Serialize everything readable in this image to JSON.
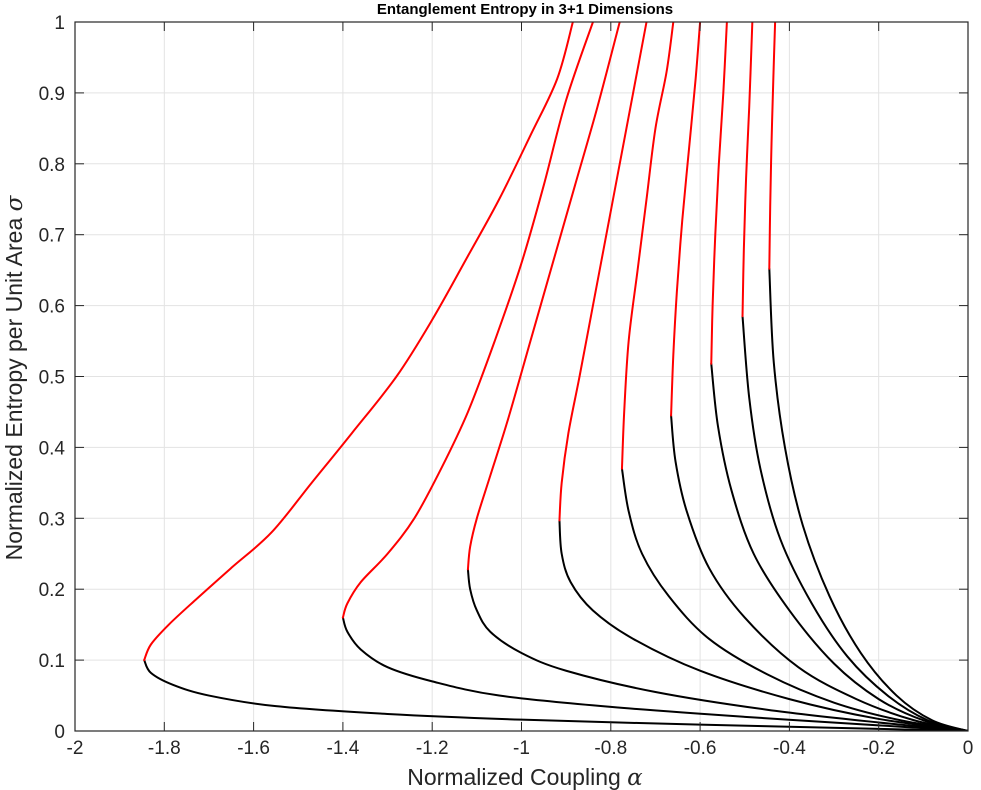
{
  "chart_data": {
    "type": "line",
    "title": "Entanglement Entropy in 3+1 Dimensions",
    "xlabel": "Normalized Coupling",
    "xlabel_symbol": "α",
    "ylabel": "Normalized Entropy per Unit Area",
    "ylabel_symbol": "σ",
    "xlim": [
      -2,
      0
    ],
    "ylim": [
      0,
      1
    ],
    "xticks": [
      "-2",
      "-1.8",
      "-1.6",
      "-1.4",
      "-1.2",
      "-1",
      "-0.8",
      "-0.6",
      "-0.4",
      "-0.2",
      "0"
    ],
    "yticks": [
      "0",
      "0.1",
      "0.2",
      "0.3",
      "0.4",
      "0.5",
      "0.6",
      "0.7",
      "0.8",
      "0.9",
      "1"
    ],
    "grid": true,
    "colors": {
      "lower_branch": "#000000",
      "upper_branch": "#ff0000",
      "grid": "#e3e3e3",
      "axis": "#262626"
    },
    "series": [
      {
        "lower": [
          [
            0,
            0
          ],
          [
            -0.2,
            0.003
          ],
          [
            -0.6,
            0.009
          ],
          [
            -1.0,
            0.016
          ],
          [
            -1.3,
            0.024
          ],
          [
            -1.55,
            0.035
          ],
          [
            -1.7,
            0.05
          ],
          [
            -1.78,
            0.065
          ],
          [
            -1.83,
            0.082
          ],
          [
            -1.845,
            0.1
          ]
        ],
        "upper": [
          [
            -1.845,
            0.1
          ],
          [
            -1.83,
            0.122
          ],
          [
            -1.79,
            0.15
          ],
          [
            -1.73,
            0.185
          ],
          [
            -1.65,
            0.23
          ],
          [
            -1.56,
            0.28
          ],
          [
            -1.47,
            0.35
          ],
          [
            -1.38,
            0.42
          ],
          [
            -1.28,
            0.5
          ],
          [
            -1.2,
            0.58
          ],
          [
            -1.12,
            0.67
          ],
          [
            -1.05,
            0.75
          ],
          [
            -0.98,
            0.84
          ],
          [
            -0.92,
            0.92
          ],
          [
            -0.885,
            1.0
          ]
        ]
      },
      {
        "lower": [
          [
            0,
            0
          ],
          [
            -0.2,
            0.008
          ],
          [
            -0.5,
            0.02
          ],
          [
            -0.8,
            0.034
          ],
          [
            -1.05,
            0.05
          ],
          [
            -1.2,
            0.07
          ],
          [
            -1.3,
            0.09
          ],
          [
            -1.36,
            0.115
          ],
          [
            -1.39,
            0.14
          ],
          [
            -1.4,
            0.16
          ]
        ],
        "upper": [
          [
            -1.4,
            0.16
          ],
          [
            -1.39,
            0.18
          ],
          [
            -1.36,
            0.21
          ],
          [
            -1.3,
            0.25
          ],
          [
            -1.24,
            0.3
          ],
          [
            -1.18,
            0.37
          ],
          [
            -1.12,
            0.45
          ],
          [
            -1.06,
            0.55
          ],
          [
            -1.0,
            0.66
          ],
          [
            -0.95,
            0.77
          ],
          [
            -0.9,
            0.89
          ],
          [
            -0.84,
            1.0
          ]
        ]
      },
      {
        "lower": [
          [
            0,
            0
          ],
          [
            -0.2,
            0.012
          ],
          [
            -0.45,
            0.03
          ],
          [
            -0.7,
            0.055
          ],
          [
            -0.9,
            0.085
          ],
          [
            -1.0,
            0.11
          ],
          [
            -1.07,
            0.14
          ],
          [
            -1.1,
            0.17
          ],
          [
            -1.115,
            0.2
          ],
          [
            -1.12,
            0.228
          ]
        ],
        "upper": [
          [
            -1.12,
            0.228
          ],
          [
            -1.115,
            0.26
          ],
          [
            -1.1,
            0.3
          ],
          [
            -1.07,
            0.36
          ],
          [
            -1.03,
            0.44
          ],
          [
            -0.98,
            0.55
          ],
          [
            -0.93,
            0.66
          ],
          [
            -0.88,
            0.77
          ],
          [
            -0.83,
            0.88
          ],
          [
            -0.78,
            1.0
          ]
        ]
      },
      {
        "lower": [
          [
            0,
            0
          ],
          [
            -0.2,
            0.017
          ],
          [
            -0.4,
            0.045
          ],
          [
            -0.6,
            0.085
          ],
          [
            -0.75,
            0.13
          ],
          [
            -0.84,
            0.17
          ],
          [
            -0.89,
            0.21
          ],
          [
            -0.91,
            0.25
          ],
          [
            -0.915,
            0.297
          ]
        ],
        "upper": [
          [
            -0.915,
            0.297
          ],
          [
            -0.91,
            0.35
          ],
          [
            -0.895,
            0.42
          ],
          [
            -0.87,
            0.5
          ],
          [
            -0.84,
            0.6
          ],
          [
            -0.81,
            0.7
          ],
          [
            -0.78,
            0.8
          ],
          [
            -0.75,
            0.9
          ],
          [
            -0.72,
            1.0
          ]
        ]
      },
      {
        "lower": [
          [
            0,
            0
          ],
          [
            -0.15,
            0.015
          ],
          [
            -0.3,
            0.04
          ],
          [
            -0.45,
            0.08
          ],
          [
            -0.58,
            0.13
          ],
          [
            -0.67,
            0.19
          ],
          [
            -0.73,
            0.25
          ],
          [
            -0.76,
            0.31
          ],
          [
            -0.775,
            0.37
          ]
        ],
        "upper": [
          [
            -0.775,
            0.37
          ],
          [
            -0.77,
            0.45
          ],
          [
            -0.76,
            0.55
          ],
          [
            -0.74,
            0.65
          ],
          [
            -0.72,
            0.75
          ],
          [
            -0.7,
            0.85
          ],
          [
            -0.675,
            0.93
          ],
          [
            -0.66,
            1.0
          ]
        ]
      },
      {
        "lower": [
          [
            0,
            0
          ],
          [
            -0.12,
            0.015
          ],
          [
            -0.25,
            0.045
          ],
          [
            -0.38,
            0.09
          ],
          [
            -0.5,
            0.16
          ],
          [
            -0.58,
            0.23
          ],
          [
            -0.63,
            0.31
          ],
          [
            -0.655,
            0.38
          ],
          [
            -0.665,
            0.445
          ]
        ],
        "upper": [
          [
            -0.665,
            0.445
          ],
          [
            -0.66,
            0.53
          ],
          [
            -0.652,
            0.62
          ],
          [
            -0.64,
            0.72
          ],
          [
            -0.625,
            0.82
          ],
          [
            -0.61,
            0.92
          ],
          [
            -0.6,
            1.0
          ]
        ]
      },
      {
        "lower": [
          [
            0,
            0
          ],
          [
            -0.1,
            0.015
          ],
          [
            -0.2,
            0.045
          ],
          [
            -0.3,
            0.095
          ],
          [
            -0.4,
            0.17
          ],
          [
            -0.48,
            0.25
          ],
          [
            -0.53,
            0.34
          ],
          [
            -0.56,
            0.43
          ],
          [
            -0.575,
            0.518
          ]
        ],
        "upper": [
          [
            -0.575,
            0.518
          ],
          [
            -0.572,
            0.6
          ],
          [
            -0.566,
            0.7
          ],
          [
            -0.558,
            0.8
          ],
          [
            -0.548,
            0.9
          ],
          [
            -0.54,
            1.0
          ]
        ]
      },
      {
        "lower": [
          [
            0,
            0
          ],
          [
            -0.09,
            0.015
          ],
          [
            -0.18,
            0.05
          ],
          [
            -0.27,
            0.105
          ],
          [
            -0.35,
            0.18
          ],
          [
            -0.42,
            0.27
          ],
          [
            -0.465,
            0.37
          ],
          [
            -0.49,
            0.47
          ],
          [
            -0.505,
            0.585
          ]
        ],
        "upper": [
          [
            -0.505,
            0.585
          ],
          [
            -0.502,
            0.68
          ],
          [
            -0.497,
            0.78
          ],
          [
            -0.49,
            0.88
          ],
          [
            -0.483,
            1.0
          ]
        ]
      },
      {
        "lower": [
          [
            0,
            0
          ],
          [
            -0.08,
            0.015
          ],
          [
            -0.16,
            0.05
          ],
          [
            -0.24,
            0.11
          ],
          [
            -0.31,
            0.19
          ],
          [
            -0.37,
            0.29
          ],
          [
            -0.41,
            0.4
          ],
          [
            -0.435,
            0.52
          ],
          [
            -0.445,
            0.652
          ]
        ],
        "upper": [
          [
            -0.445,
            0.652
          ],
          [
            -0.443,
            0.74
          ],
          [
            -0.44,
            0.83
          ],
          [
            -0.436,
            0.92
          ],
          [
            -0.432,
            1.0
          ]
        ]
      }
    ]
  }
}
